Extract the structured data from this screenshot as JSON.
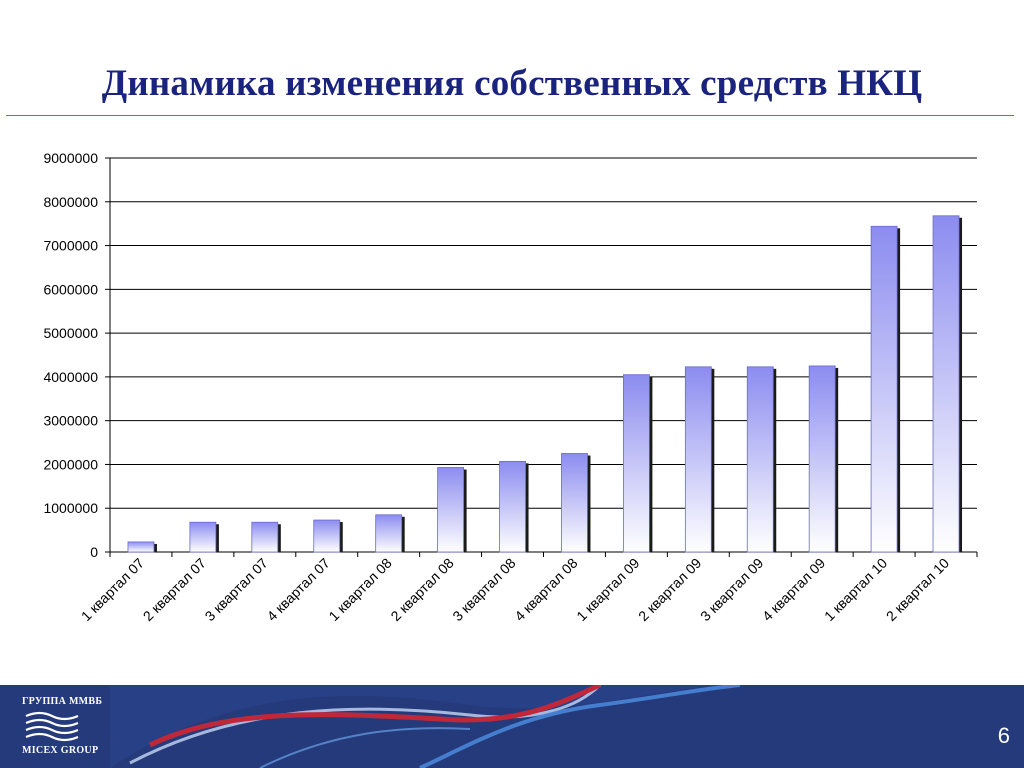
{
  "slide": {
    "title": "Динамика изменения собственных средств НКЦ",
    "page_number": "6"
  },
  "logo": {
    "top_text": "ГРУППА ММВБ",
    "bottom_text": "MICEX GROUP"
  },
  "colors": {
    "title": "#1a237e",
    "bar_top": "#8c8cf0",
    "bar_bottom": "#ffffff",
    "footer_bg": "#243a7a"
  },
  "chart_data": {
    "type": "bar",
    "categories": [
      "1 квартал 07",
      "2 квартал 07",
      "3 квартал 07",
      "4 квартал 07",
      "1 квартал 08",
      "2 квартал 08",
      "3 квартал 08",
      "4 квартал 08",
      "1 квартал 09",
      "2 квартал 09",
      "3 квартал 09",
      "4 квартал 09",
      "1 квартал 10",
      "2 квартал 10"
    ],
    "values": [
      230000,
      680000,
      680000,
      730000,
      850000,
      1930000,
      2070000,
      2250000,
      4050000,
      4230000,
      4230000,
      4250000,
      7440000,
      7680000
    ],
    "ylim": [
      0,
      9000000
    ],
    "yticks": [
      "0",
      "1000000",
      "2000000",
      "3000000",
      "4000000",
      "5000000",
      "6000000",
      "7000000",
      "8000000",
      "9000000"
    ],
    "grid": true,
    "title": "",
    "xlabel": "",
    "ylabel": ""
  }
}
